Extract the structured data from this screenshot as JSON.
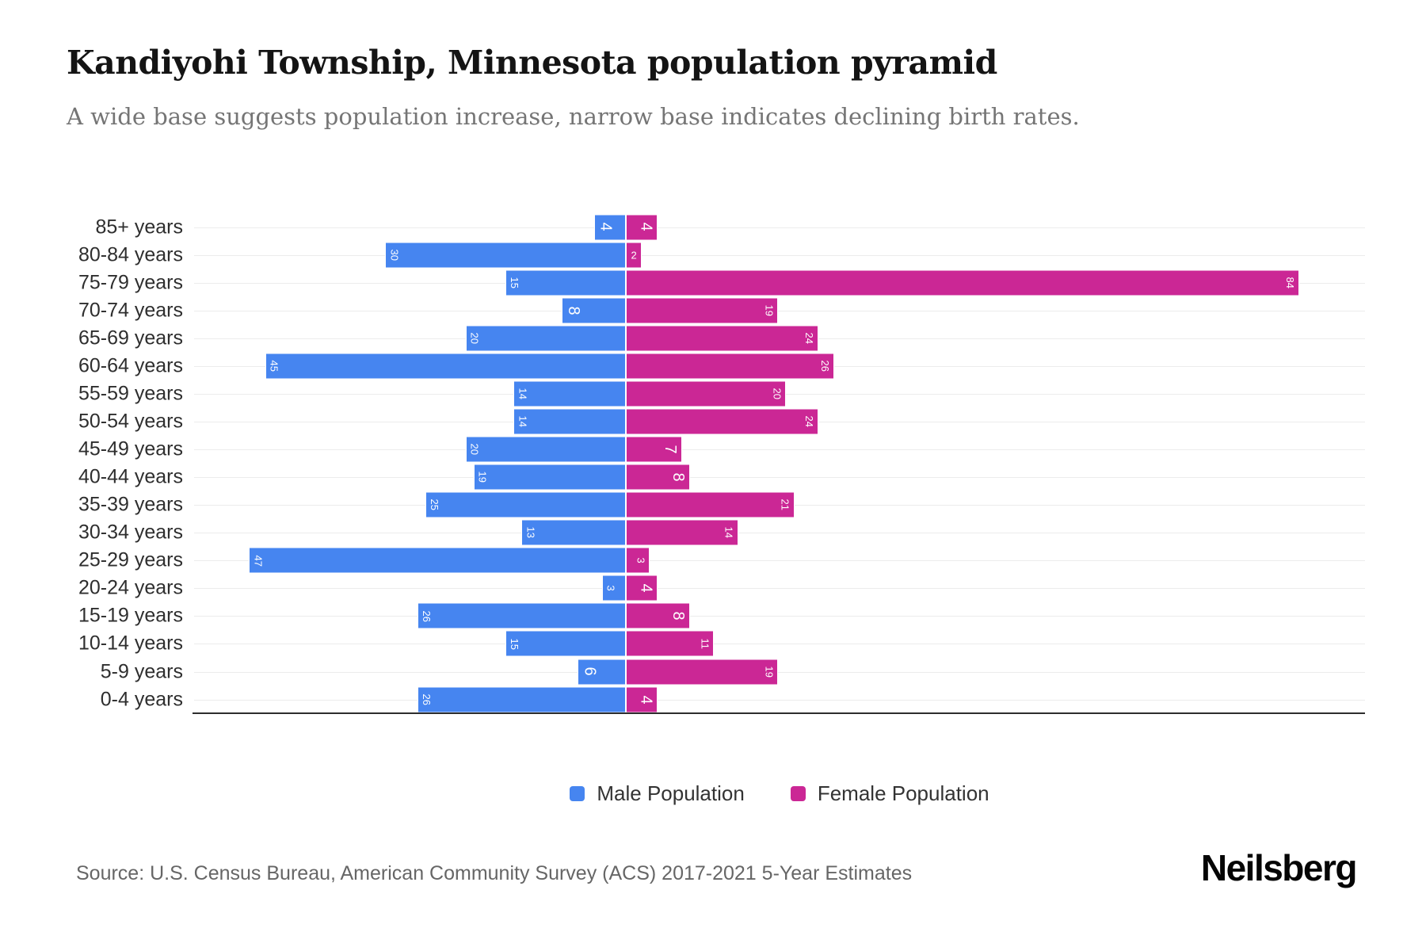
{
  "header": {
    "title": "Kandiyohi Township, Minnesota population pyramid",
    "subtitle": "A wide base suggests population increase, narrow base indicates declining birth rates."
  },
  "colors": {
    "male": "#4685f0",
    "female": "#cb2795",
    "gridline": "#ececec",
    "axis_line": "#2d2d2d",
    "bar_label": "#ffffff"
  },
  "chart_data": {
    "type": "bar",
    "variant": "population-pyramid",
    "title": "Kandiyohi Township, Minnesota population pyramid",
    "categories": [
      "85+ years",
      "80-84 years",
      "75-79 years",
      "70-74 years",
      "65-69 years",
      "60-64 years",
      "55-59 years",
      "50-54 years",
      "45-49 years",
      "40-44 years",
      "35-39 years",
      "30-34 years",
      "25-29 years",
      "20-24 years",
      "15-19 years",
      "10-14 years",
      "5-9 years",
      "0-4 years"
    ],
    "series": [
      {
        "name": "Male Population",
        "side": "left",
        "values": [
          4,
          30,
          15,
          8,
          20,
          45,
          14,
          14,
          20,
          19,
          25,
          13,
          47,
          3,
          26,
          15,
          6,
          26
        ]
      },
      {
        "name": "Female Population",
        "side": "right",
        "values": [
          4,
          2,
          84,
          19,
          24,
          26,
          20,
          24,
          7,
          8,
          21,
          14,
          3,
          4,
          8,
          11,
          19,
          4
        ]
      }
    ],
    "xlabel": "",
    "ylabel": "",
    "grid": "horizontal-per-category",
    "legend_position": "bottom",
    "data_labels": "inside-bar-end, white, rotated 90deg"
  },
  "legend": {
    "items": [
      {
        "label": "Male Population",
        "color": "#4685f0"
      },
      {
        "label": "Female Population",
        "color": "#cb2795"
      }
    ]
  },
  "footer": {
    "source": "Source: U.S. Census Bureau, American Community Survey (ACS) 2017-2021 5-Year Estimates",
    "brand": "Neilsberg"
  }
}
